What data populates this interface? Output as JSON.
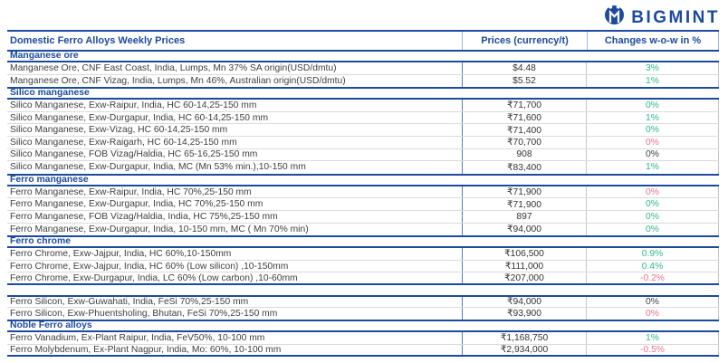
{
  "brand": {
    "name": "BIGMINT",
    "logo_color": "#1c4a9c"
  },
  "colors": {
    "accent_blue": "#1c4a9c",
    "positive": "#2eb98c",
    "negative": "#f0708c",
    "neutral": "#3f3f3f"
  },
  "table": {
    "headers": {
      "title": "Domestic Ferro Alloys Weekly Prices",
      "prices": "Prices (currency/t)",
      "changes": "Changes w-o-w in %"
    },
    "sections": [
      {
        "id": "manganese-ore",
        "title": "Manganese ore",
        "gap_before": false,
        "rows": [
          {
            "label": "Manganese Ore, CNF East Coast, India, Lumps, Mn 37% SA origin(USD/dmtu)",
            "price": "$4.48",
            "change": "3%",
            "trend": "positive"
          },
          {
            "label": "Manganese Ore, CNF Vizag, India, Lumps, Mn 46%, Australian origin(USD/dmtu)",
            "price": "$5.52",
            "change": "1%",
            "trend": "positive"
          }
        ]
      },
      {
        "id": "silico-manganese",
        "title": "Silico manganese",
        "gap_before": false,
        "rows": [
          {
            "label": "Silico Manganese, Exw-Raipur, India, HC 60-14,25-150 mm",
            "price": "₹71,700",
            "change": "0%",
            "trend": "positive"
          },
          {
            "label": "Silico Manganese, Exw-Durgapur, India, HC 60-14,25-150 mm",
            "price": "₹71,600",
            "change": "1%",
            "trend": "positive"
          },
          {
            "label": "Silico Manganese, Exw-Vizag, HC 60-14,25-150 mm",
            "price": "₹71,400",
            "change": "0%",
            "trend": "positive"
          },
          {
            "label": "Silico Manganese, Exw-Raigarh, HC 60-14,25-150 mm",
            "price": "₹70,700",
            "change": "0%",
            "trend": "negative"
          },
          {
            "label": "Silico Manganese, FOB Vizag/Haldia, HC 65-16,25-150 mm",
            "price": "908",
            "change": "0%",
            "trend": "neutral"
          },
          {
            "label": "Silico Manganese, Exw-Durgapur, India, MC (Mn 53% min.),10-150 mm",
            "price": "₹83,400",
            "change": "1%",
            "trend": "positive"
          }
        ]
      },
      {
        "id": "ferro-manganese",
        "title": "Ferro manganese",
        "gap_before": false,
        "rows": [
          {
            "label": "Ferro Manganese, Exw-Raipur, India, HC 70%,25-150 mm",
            "price": "₹71,900",
            "change": "0%",
            "trend": "negative"
          },
          {
            "label": "Ferro Manganese, Exw-Durgapur, India, HC 70%,25-150 mm",
            "price": "₹71,900",
            "change": "0%",
            "trend": "positive"
          },
          {
            "label": "Ferro Manganese, FOB Vizag/Haldia, India, HC 75%,25-150 mm",
            "price": "897",
            "change": "0%",
            "trend": "positive"
          },
          {
            "label": "Ferro Manganese, Exw-Durgapur, India, 10-150 mm, MC ( Mn 70% min)",
            "price": "₹94,000",
            "change": "0%",
            "trend": "positive"
          }
        ]
      },
      {
        "id": "ferro-chrome",
        "title": "Ferro chrome",
        "gap_before": false,
        "rows": [
          {
            "label": "Ferro Chrome, Exw-Jajpur, India, HC 60%,10-150mm",
            "price": "₹106,500",
            "change": "0.9%",
            "trend": "positive"
          },
          {
            "label": "Ferro Chrome, Exw-Jajpur, India, HC 60% (Low silicon) ,10-150mm",
            "price": "₹111,000",
            "change": "0.4%",
            "trend": "positive"
          },
          {
            "label": "Ferro Chrome, Exw-Durgapur, India, LC 60% (Low carbon) ,10-60mm",
            "price": "₹207,000",
            "change": "-0.2%",
            "trend": "negative"
          }
        ]
      },
      {
        "id": "ferro-silicon",
        "title": "",
        "gap_before": true,
        "rows": [
          {
            "label": "Ferro Silicon, Exw-Guwahati, India, FeSi 70%,25-150 mm",
            "price": "₹94,000",
            "change": "0%",
            "trend": "neutral"
          },
          {
            "label": "Ferro Silicon, Exw-Phuentsholing, Bhutan, FeSi 70%,25-150 mm",
            "price": "₹93,900",
            "change": "0%",
            "trend": "negative"
          }
        ]
      },
      {
        "id": "noble-ferro-alloys",
        "title": "Noble Ferro alloys",
        "gap_before": false,
        "rows": [
          {
            "label": "Ferro Vanadium, Ex-Plant Raipur, India, FeV50%, 10-100 mm",
            "price": "₹1,168,750",
            "change": "1%",
            "trend": "positive"
          },
          {
            "label": "Ferro Molybdenum, Ex-Plant Nagpur, India, Mo: 60%, 10-100 mm",
            "price": "₹2,934,000",
            "change": "-0.5%",
            "trend": "negative"
          }
        ]
      }
    ]
  }
}
